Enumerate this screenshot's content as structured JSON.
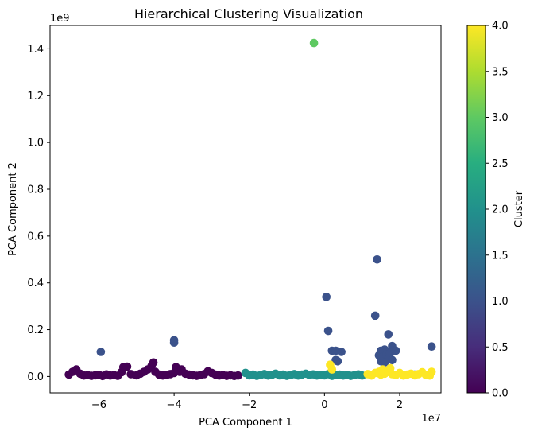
{
  "chart_data": {
    "type": "scatter",
    "title": "Hierarchical Clustering Visualization",
    "xlabel": "PCA Component 1",
    "ylabel": "PCA Component 2",
    "x_offset_text": "1e7",
    "y_offset_text": "1e9",
    "xlim": [
      -7.3,
      3.1
    ],
    "ylim": [
      -0.07,
      1.5
    ],
    "x_ticks": [
      {
        "value": -6,
        "label": "−6"
      },
      {
        "value": -4,
        "label": "−4"
      },
      {
        "value": -2,
        "label": "−2"
      },
      {
        "value": 0,
        "label": "0"
      },
      {
        "value": 2,
        "label": "2"
      }
    ],
    "y_ticks": [
      {
        "value": 0.0,
        "label": "0.0"
      },
      {
        "value": 0.2,
        "label": "0.2"
      },
      {
        "value": 0.4,
        "label": "0.4"
      },
      {
        "value": 0.6,
        "label": "0.6"
      },
      {
        "value": 0.8,
        "label": "0.8"
      },
      {
        "value": 1.0,
        "label": "1.0"
      },
      {
        "value": 1.2,
        "label": "1.2"
      },
      {
        "value": 1.4,
        "label": "1.4"
      }
    ],
    "colorbar": {
      "label": "Cluster",
      "min": 0.0,
      "max": 4.0,
      "ticks": [
        {
          "value": 0.0,
          "label": "0.0"
        },
        {
          "value": 0.5,
          "label": "0.5"
        },
        {
          "value": 1.0,
          "label": "1.0"
        },
        {
          "value": 1.5,
          "label": "1.5"
        },
        {
          "value": 2.0,
          "label": "2.0"
        },
        {
          "value": 2.5,
          "label": "2.5"
        },
        {
          "value": 3.0,
          "label": "3.0"
        },
        {
          "value": 3.5,
          "label": "3.5"
        },
        {
          "value": 4.0,
          "label": "4.0"
        }
      ],
      "colors": [
        "#440154",
        "#3b528b",
        "#21918c",
        "#5ec962",
        "#fde725"
      ]
    },
    "series": [
      {
        "name": "cluster-0",
        "cluster": 0,
        "color": "#440154",
        "points": [
          [
            -6.8,
            0.008
          ],
          [
            -6.7,
            0.02
          ],
          [
            -6.6,
            0.03
          ],
          [
            -6.5,
            0.012
          ],
          [
            -6.4,
            0.004
          ],
          [
            -6.3,
            0.006
          ],
          [
            -6.2,
            0.003
          ],
          [
            -6.1,
            0.005
          ],
          [
            -6.0,
            0.007
          ],
          [
            -5.9,
            0.002
          ],
          [
            -5.8,
            0.009
          ],
          [
            -5.7,
            0.004
          ],
          [
            -5.6,
            0.006
          ],
          [
            -5.5,
            0.003
          ],
          [
            -5.4,
            0.018
          ],
          [
            -5.35,
            0.04
          ],
          [
            -5.25,
            0.042
          ],
          [
            -5.15,
            0.01
          ],
          [
            -5.0,
            0.005
          ],
          [
            -4.9,
            0.012
          ],
          [
            -4.8,
            0.02
          ],
          [
            -4.7,
            0.03
          ],
          [
            -4.6,
            0.045
          ],
          [
            -4.55,
            0.06
          ],
          [
            -4.5,
            0.02
          ],
          [
            -4.4,
            0.008
          ],
          [
            -4.3,
            0.004
          ],
          [
            -4.2,
            0.006
          ],
          [
            -4.1,
            0.01
          ],
          [
            -4.0,
            0.015
          ],
          [
            -3.95,
            0.04
          ],
          [
            -3.85,
            0.02
          ],
          [
            -3.8,
            0.03
          ],
          [
            -3.7,
            0.012
          ],
          [
            -3.6,
            0.008
          ],
          [
            -3.5,
            0.005
          ],
          [
            -3.4,
            0.003
          ],
          [
            -3.3,
            0.006
          ],
          [
            -3.2,
            0.01
          ],
          [
            -3.1,
            0.022
          ],
          [
            -3.0,
            0.015
          ],
          [
            -2.9,
            0.008
          ],
          [
            -2.8,
            0.004
          ],
          [
            -2.7,
            0.006
          ],
          [
            -2.6,
            0.003
          ],
          [
            -2.5,
            0.005
          ],
          [
            -2.4,
            0.002
          ],
          [
            -2.3,
            0.004
          ]
        ]
      },
      {
        "name": "cluster-1",
        "cluster": 1,
        "color": "#3b528b",
        "points": [
          [
            -5.95,
            0.105
          ],
          [
            -4.0,
            0.155
          ],
          [
            -4.0,
            0.145
          ],
          [
            0.05,
            0.34
          ],
          [
            0.1,
            0.195
          ],
          [
            0.2,
            0.11
          ],
          [
            0.3,
            0.11
          ],
          [
            0.45,
            0.105
          ],
          [
            0.3,
            0.07
          ],
          [
            0.35,
            0.065
          ],
          [
            1.4,
            0.5
          ],
          [
            1.35,
            0.26
          ],
          [
            1.7,
            0.18
          ],
          [
            1.8,
            0.13
          ],
          [
            1.6,
            0.115
          ],
          [
            1.5,
            0.11
          ],
          [
            1.45,
            0.09
          ],
          [
            1.55,
            0.085
          ],
          [
            1.65,
            0.095
          ],
          [
            1.75,
            0.1
          ],
          [
            1.7,
            0.075
          ],
          [
            1.8,
            0.07
          ],
          [
            1.5,
            0.065
          ],
          [
            1.6,
            0.06
          ],
          [
            1.9,
            0.11
          ],
          [
            2.4,
            0.008
          ],
          [
            2.85,
            0.128
          ]
        ]
      },
      {
        "name": "cluster-2",
        "cluster": 2,
        "color": "#21918c",
        "points": [
          [
            -2.1,
            0.015
          ],
          [
            -2.0,
            0.005
          ],
          [
            -1.9,
            0.008
          ],
          [
            -1.8,
            0.003
          ],
          [
            -1.7,
            0.006
          ],
          [
            -1.6,
            0.01
          ],
          [
            -1.5,
            0.004
          ],
          [
            -1.4,
            0.007
          ],
          [
            -1.3,
            0.012
          ],
          [
            -1.2,
            0.005
          ],
          [
            -1.1,
            0.008
          ],
          [
            -1.0,
            0.003
          ],
          [
            -0.9,
            0.006
          ],
          [
            -0.8,
            0.01
          ],
          [
            -0.7,
            0.004
          ],
          [
            -0.6,
            0.008
          ],
          [
            -0.5,
            0.012
          ],
          [
            -0.4,
            0.006
          ],
          [
            -0.3,
            0.009
          ],
          [
            -0.2,
            0.004
          ],
          [
            -0.1,
            0.007
          ],
          [
            0.0,
            0.005
          ],
          [
            0.1,
            0.01
          ],
          [
            0.2,
            0.003
          ],
          [
            0.3,
            0.006
          ],
          [
            0.4,
            0.008
          ],
          [
            0.5,
            0.004
          ],
          [
            0.6,
            0.007
          ],
          [
            0.7,
            0.003
          ],
          [
            0.8,
            0.006
          ],
          [
            0.9,
            0.009
          ],
          [
            1.0,
            0.004
          ]
        ]
      },
      {
        "name": "cluster-3",
        "cluster": 3,
        "color": "#5ec962",
        "points": [
          [
            -0.28,
            1.425
          ]
        ]
      },
      {
        "name": "cluster-4",
        "cluster": 4,
        "color": "#fde725",
        "points": [
          [
            0.15,
            0.05
          ],
          [
            0.2,
            0.03
          ],
          [
            1.15,
            0.01
          ],
          [
            1.25,
            0.004
          ],
          [
            1.35,
            0.015
          ],
          [
            1.45,
            0.02
          ],
          [
            1.5,
            0.008
          ],
          [
            1.55,
            0.03
          ],
          [
            1.6,
            0.012
          ],
          [
            1.7,
            0.02
          ],
          [
            1.75,
            0.035
          ],
          [
            1.8,
            0.01
          ],
          [
            1.9,
            0.006
          ],
          [
            2.0,
            0.015
          ],
          [
            2.1,
            0.004
          ],
          [
            2.2,
            0.008
          ],
          [
            2.3,
            0.012
          ],
          [
            2.4,
            0.005
          ],
          [
            2.5,
            0.01
          ],
          [
            2.6,
            0.018
          ],
          [
            2.7,
            0.006
          ],
          [
            2.8,
            0.004
          ],
          [
            2.85,
            0.02
          ]
        ]
      }
    ]
  }
}
